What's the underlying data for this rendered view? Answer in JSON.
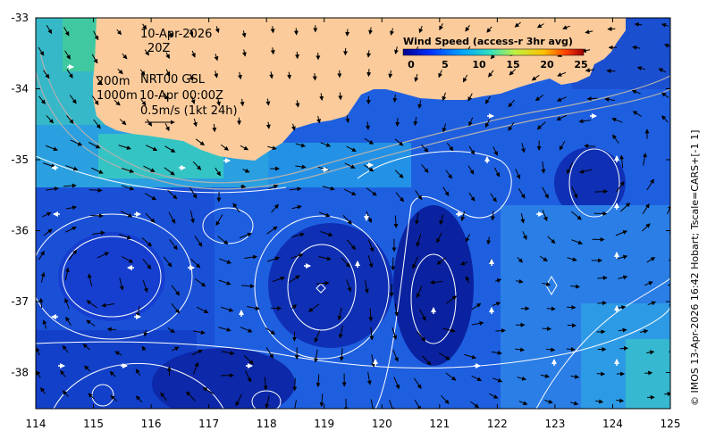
{
  "map": {
    "x_ticks": [
      "114",
      "115",
      "116",
      "117",
      "118",
      "119",
      "120",
      "121",
      "122",
      "123",
      "124",
      "125"
    ],
    "y_ticks": [
      "-33",
      "-34",
      "-35",
      "-36",
      "-37",
      "-38"
    ],
    "lon_range": [
      114,
      125
    ],
    "lat_range": [
      -38.5,
      -33
    ]
  },
  "annotations": {
    "date": "10-Apr-2026",
    "hour": "20Z",
    "depth_200": "200m",
    "depth_1000": "1000m",
    "source": "NRT00 GSL",
    "vector_time": "10-Apr 00:00Z",
    "scale": "0.5m/s (1kt 24h)"
  },
  "legend": {
    "title": "Wind Speed (access-r 3hr avg)",
    "ticks": [
      "0",
      "5",
      "10",
      "15",
      "20",
      "25"
    ],
    "range": [
      0,
      25
    ]
  },
  "credit": "© IMOS 13-Apr-2026 16:42 Hobart; Tscale=CARS+[-1 1]",
  "colors": {
    "land": "#fbcb9b",
    "ocean_deep": "#0a2fb8",
    "ocean_mid": "#1e5fe0",
    "ocean_light": "#2fa0e6",
    "ocean_shelf": "#35c8b0",
    "contour": "#ffffff",
    "bathymetry": "#b0b0b0"
  }
}
